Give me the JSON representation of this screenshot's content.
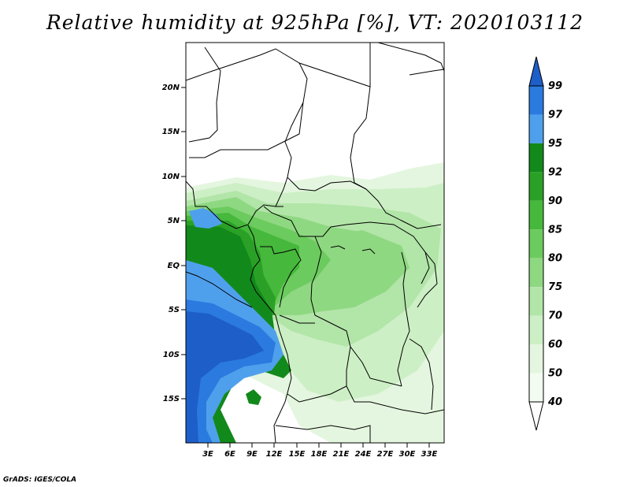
{
  "title": "Relative humidity at 925hPa [%], VT: 2020103112",
  "credit": "GrADS: IGES/COLA",
  "lat_labels": [
    "20N",
    "15N",
    "10N",
    "5N",
    "EQ",
    "5S",
    "10S",
    "15S"
  ],
  "lon_labels": [
    "3E",
    "6E",
    "9E",
    "12E",
    "15E",
    "18E",
    "21E",
    "24E",
    "27E",
    "30E",
    "33E"
  ],
  "colorbar": {
    "levels": [
      "99",
      "97",
      "95",
      "92",
      "90",
      "85",
      "80",
      "75",
      "70",
      "60",
      "50",
      "40"
    ],
    "colors": [
      "#1e5ec8",
      "#2a7ae0",
      "#4fa0ec",
      "#12891b",
      "#2aa126",
      "#46b83c",
      "#6ccb5e",
      "#8fd882",
      "#b2e5a8",
      "#cdefc5",
      "#e4f6df",
      "#f3fcf1"
    ]
  },
  "domain": {
    "lon_range": [
      0,
      35
    ],
    "lat_range": [
      -20,
      25
    ]
  }
}
